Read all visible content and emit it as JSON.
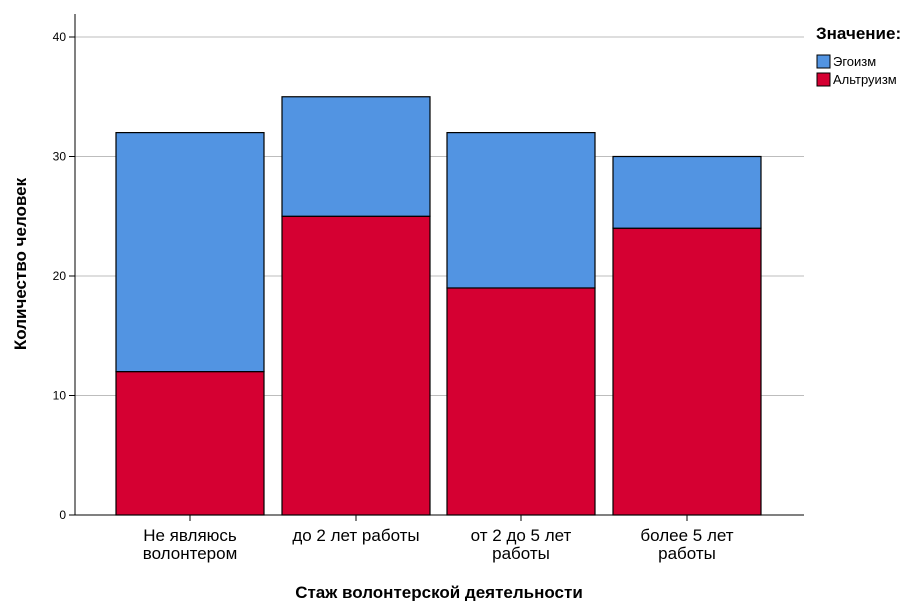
{
  "chart_data": {
    "type": "bar",
    "stacked": true,
    "categories": [
      [
        "Не являюсь",
        "волонтером"
      ],
      [
        "до 2 лет работы"
      ],
      [
        "от 2 до 5 лет",
        "работы"
      ],
      [
        "более 5 лет",
        "работы"
      ]
    ],
    "series": [
      {
        "name": "Альтруизм",
        "color": "#d50032",
        "values": [
          12,
          25,
          19,
          24
        ]
      },
      {
        "name": "Эгоизм",
        "color": "#5294e2",
        "values": [
          20,
          10,
          13,
          6
        ]
      }
    ],
    "xlabel": "Стаж волонтерской деятельности",
    "ylabel": "Количество человек",
    "ylim": [
      0,
      40
    ],
    "yticks": [
      0,
      10,
      20,
      30,
      40
    ],
    "grid": true,
    "legend": {
      "title": "Значение:",
      "position": "top-right",
      "order": [
        "Эгоизм",
        "Альтруизм"
      ]
    }
  }
}
